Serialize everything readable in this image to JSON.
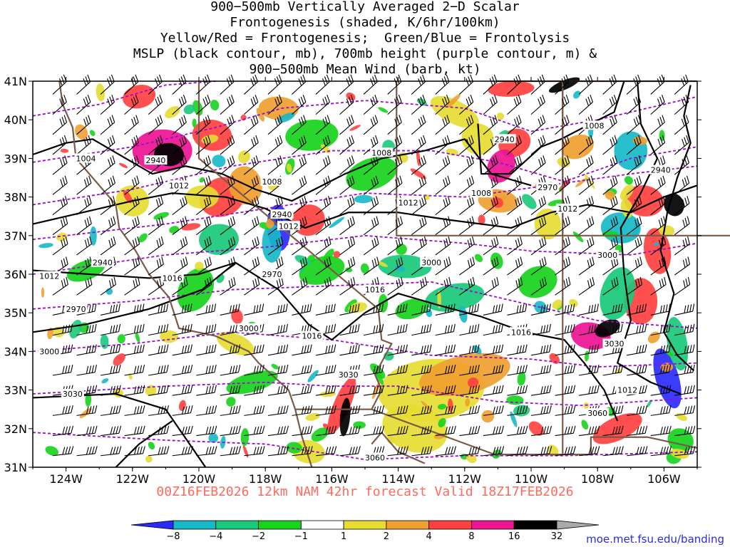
{
  "title_lines": [
    "900−500mb Vertically Averaged 2−D Scalar",
    "Frontogenesis (shaded, K/6hr/100km)",
    "Yellow/Red = Frontogenesis;  Green/Blue = Frontolysis",
    "MSLP (black contour, mb), 700mb height (purple contour, m) &",
    "900−500mb Mean Wind (barb, kt)"
  ],
  "valid_text": "00Z16FEB2026 12km NAM 42hr forecast Valid 18Z17FEB2026",
  "credit": "moe.met.fsu.edu/banding",
  "map": {
    "lon_range": [
      -125,
      -105
    ],
    "lat_range": [
      31,
      41
    ],
    "lon_labels": [
      "124W",
      "122W",
      "120W",
      "118W",
      "116W",
      "114W",
      "112W",
      "110W",
      "108W",
      "106W"
    ],
    "lat_labels": [
      "41N",
      "40N",
      "39N",
      "38N",
      "37N",
      "36N",
      "35N",
      "34N",
      "33N",
      "32N",
      "31N"
    ]
  },
  "colorbar": {
    "labels": [
      "−8",
      "−4",
      "−2",
      "−1",
      "1",
      "2",
      "4",
      "8",
      "16",
      "32"
    ],
    "colors": [
      "#2b2bff",
      "#17b8c8",
      "#19c97a",
      "#16d31b",
      "#ffffff",
      "#e6dc32",
      "#f0a030",
      "#ff4040",
      "#ee1493",
      "#000000",
      "#aaaaaa"
    ]
  },
  "mslp_labels": [
    {
      "text": "1004",
      "lon": -123.4,
      "lat": 39.0
    },
    {
      "text": "1008",
      "lon": -117.8,
      "lat": 38.4
    },
    {
      "text": "1008",
      "lon": -114.5,
      "lat": 39.15
    },
    {
      "text": "1008",
      "lon": -111.5,
      "lat": 38.1
    },
    {
      "text": "1008",
      "lon": -108.1,
      "lat": 39.85
    },
    {
      "text": "1012",
      "lon": -120.6,
      "lat": 38.3
    },
    {
      "text": "1012",
      "lon": -117.3,
      "lat": 37.25
    },
    {
      "text": "1012",
      "lon": -113.7,
      "lat": 37.85
    },
    {
      "text": "1012",
      "lon": -108.9,
      "lat": 37.7
    },
    {
      "text": "1012",
      "lon": -107.1,
      "lat": 33.0
    },
    {
      "text": "1012",
      "lon": -124.5,
      "lat": 35.95
    },
    {
      "text": "1016",
      "lon": -120.8,
      "lat": 35.9
    },
    {
      "text": "1016",
      "lon": -116.6,
      "lat": 34.4
    },
    {
      "text": "1016",
      "lon": -114.7,
      "lat": 35.6
    },
    {
      "text": "1016",
      "lon": -110.3,
      "lat": 34.5
    }
  ],
  "height_labels": [
    {
      "text": "2940",
      "lon": -121.3,
      "lat": 38.95
    },
    {
      "text": "2940",
      "lon": -117.5,
      "lat": 37.55
    },
    {
      "text": "2940",
      "lon": -110.8,
      "lat": 39.5
    },
    {
      "text": "2940",
      "lon": -106.1,
      "lat": 38.7
    },
    {
      "text": "2940",
      "lon": -122.9,
      "lat": 36.3
    },
    {
      "text": "2970",
      "lon": -117.8,
      "lat": 36.0
    },
    {
      "text": "2970",
      "lon": -109.5,
      "lat": 38.25
    },
    {
      "text": "2970",
      "lon": -123.7,
      "lat": 35.1
    },
    {
      "text": "3000",
      "lon": -118.5,
      "lat": 34.6
    },
    {
      "text": "3000",
      "lon": -113.0,
      "lat": 36.3
    },
    {
      "text": "3000",
      "lon": -107.7,
      "lat": 36.5
    },
    {
      "text": "3000",
      "lon": -124.5,
      "lat": 34.0
    },
    {
      "text": "3030",
      "lon": -115.5,
      "lat": 33.4
    },
    {
      "text": "3030",
      "lon": -107.5,
      "lat": 34.2
    },
    {
      "text": "3030",
      "lon": -123.8,
      "lat": 32.9
    },
    {
      "text": "3060",
      "lon": -114.7,
      "lat": 31.25
    },
    {
      "text": "3060",
      "lon": -108.0,
      "lat": 32.4
    }
  ],
  "boundaries": {
    "nv_ca": [
      [
        -120,
        41
      ],
      [
        -120,
        39
      ],
      [
        -114.6,
        35.1
      ]
    ],
    "ca_az_mx": [
      [
        -114.6,
        35.1
      ],
      [
        -114.5,
        34.3
      ],
      [
        -114.2,
        34.2
      ],
      [
        -114.7,
        33.4
      ],
      [
        -114.5,
        33.0
      ],
      [
        -114.8,
        32.5
      ],
      [
        -117.1,
        32.5
      ]
    ],
    "mx_az_nm": [
      [
        -114.8,
        32.5
      ],
      [
        -111.1,
        31.33
      ],
      [
        -108.2,
        31.33
      ],
      [
        -108.2,
        31.78
      ],
      [
        -106.5,
        31.78
      ],
      [
        -105.0,
        31.5
      ]
    ],
    "ut_nv": [
      [
        -114.05,
        41
      ],
      [
        -114.05,
        37
      ],
      [
        -109.05,
        37
      ],
      [
        -103.0,
        37
      ]
    ],
    "az_nm": [
      [
        -109.05,
        41
      ],
      [
        -109.05,
        31.33
      ]
    ],
    "co_wy": [
      [
        -111.05,
        41
      ],
      [
        -105,
        41
      ]
    ],
    "ut_co": [
      [
        -111.05,
        41
      ],
      [
        -111.05,
        41
      ]
    ],
    "co_ut2": [
      [
        -109.05,
        41
      ],
      [
        -109.05,
        37
      ]
    ],
    "coast": [
      [
        -124.2,
        41
      ],
      [
        -124.1,
        40.4
      ],
      [
        -123.8,
        39.8
      ],
      [
        -123.7,
        39.0
      ],
      [
        -123.0,
        38.3
      ],
      [
        -122.5,
        37.8
      ],
      [
        -122.4,
        37.2
      ],
      [
        -121.9,
        36.6
      ],
      [
        -121.5,
        36.0
      ],
      [
        -120.9,
        35.4
      ],
      [
        -120.6,
        34.6
      ],
      [
        -119.5,
        34.4
      ],
      [
        -118.5,
        34.0
      ],
      [
        -118.2,
        33.7
      ],
      [
        -117.3,
        33.0
      ],
      [
        -117.1,
        32.5
      ],
      [
        -116.9,
        31.8
      ],
      [
        -116.6,
        31.0
      ]
    ],
    "gulf": [
      [
        -114.8,
        31.6
      ],
      [
        -114.5,
        31.9
      ],
      [
        -114.0,
        31.4
      ],
      [
        -113.2,
        31.1
      ]
    ]
  }
}
